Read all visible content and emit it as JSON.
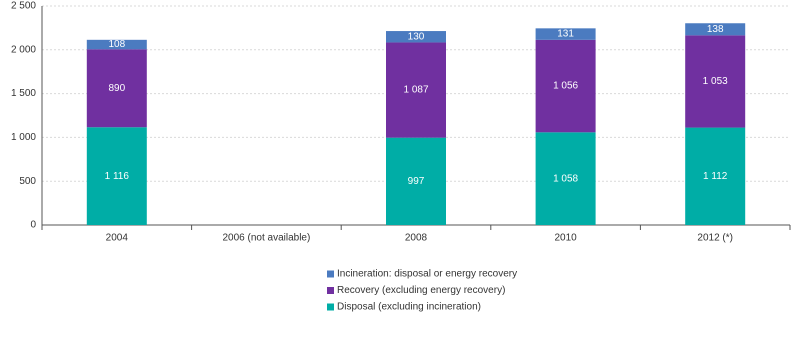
{
  "chart_data": {
    "type": "stacked-bar",
    "categories": [
      "2004",
      "2006 (not available)",
      "2008",
      "2010",
      "2012 (*)"
    ],
    "series": [
      {
        "name": "Disposal (excluding incineration)",
        "color": "#00ada6",
        "values": [
          1116,
          null,
          997,
          1058,
          1112
        ],
        "value_labels": [
          "1 116",
          null,
          "997",
          "1 058",
          "1 112"
        ]
      },
      {
        "name": "Recovery (excluding energy recovery)",
        "color": "#7030a0",
        "values": [
          890,
          null,
          1087,
          1056,
          1053
        ],
        "value_labels": [
          "890",
          null,
          "1 087",
          "1 056",
          "1 053"
        ]
      },
      {
        "name": "Incineration: disposal or energy recovery",
        "color": "#4b7bc0",
        "values": [
          108,
          null,
          130,
          131,
          138
        ],
        "value_labels": [
          "108",
          null,
          "130",
          "131",
          "138"
        ]
      }
    ],
    "ylim": [
      0,
      2500
    ],
    "yticks": [
      0,
      500,
      {
        "value": 1000,
        "label": "1 000"
      },
      {
        "value": 1500,
        "label": "1 500"
      },
      {
        "value": 2000,
        "label": "2 000"
      },
      {
        "value": 2500,
        "label": "2 500"
      }
    ],
    "grid": true
  }
}
